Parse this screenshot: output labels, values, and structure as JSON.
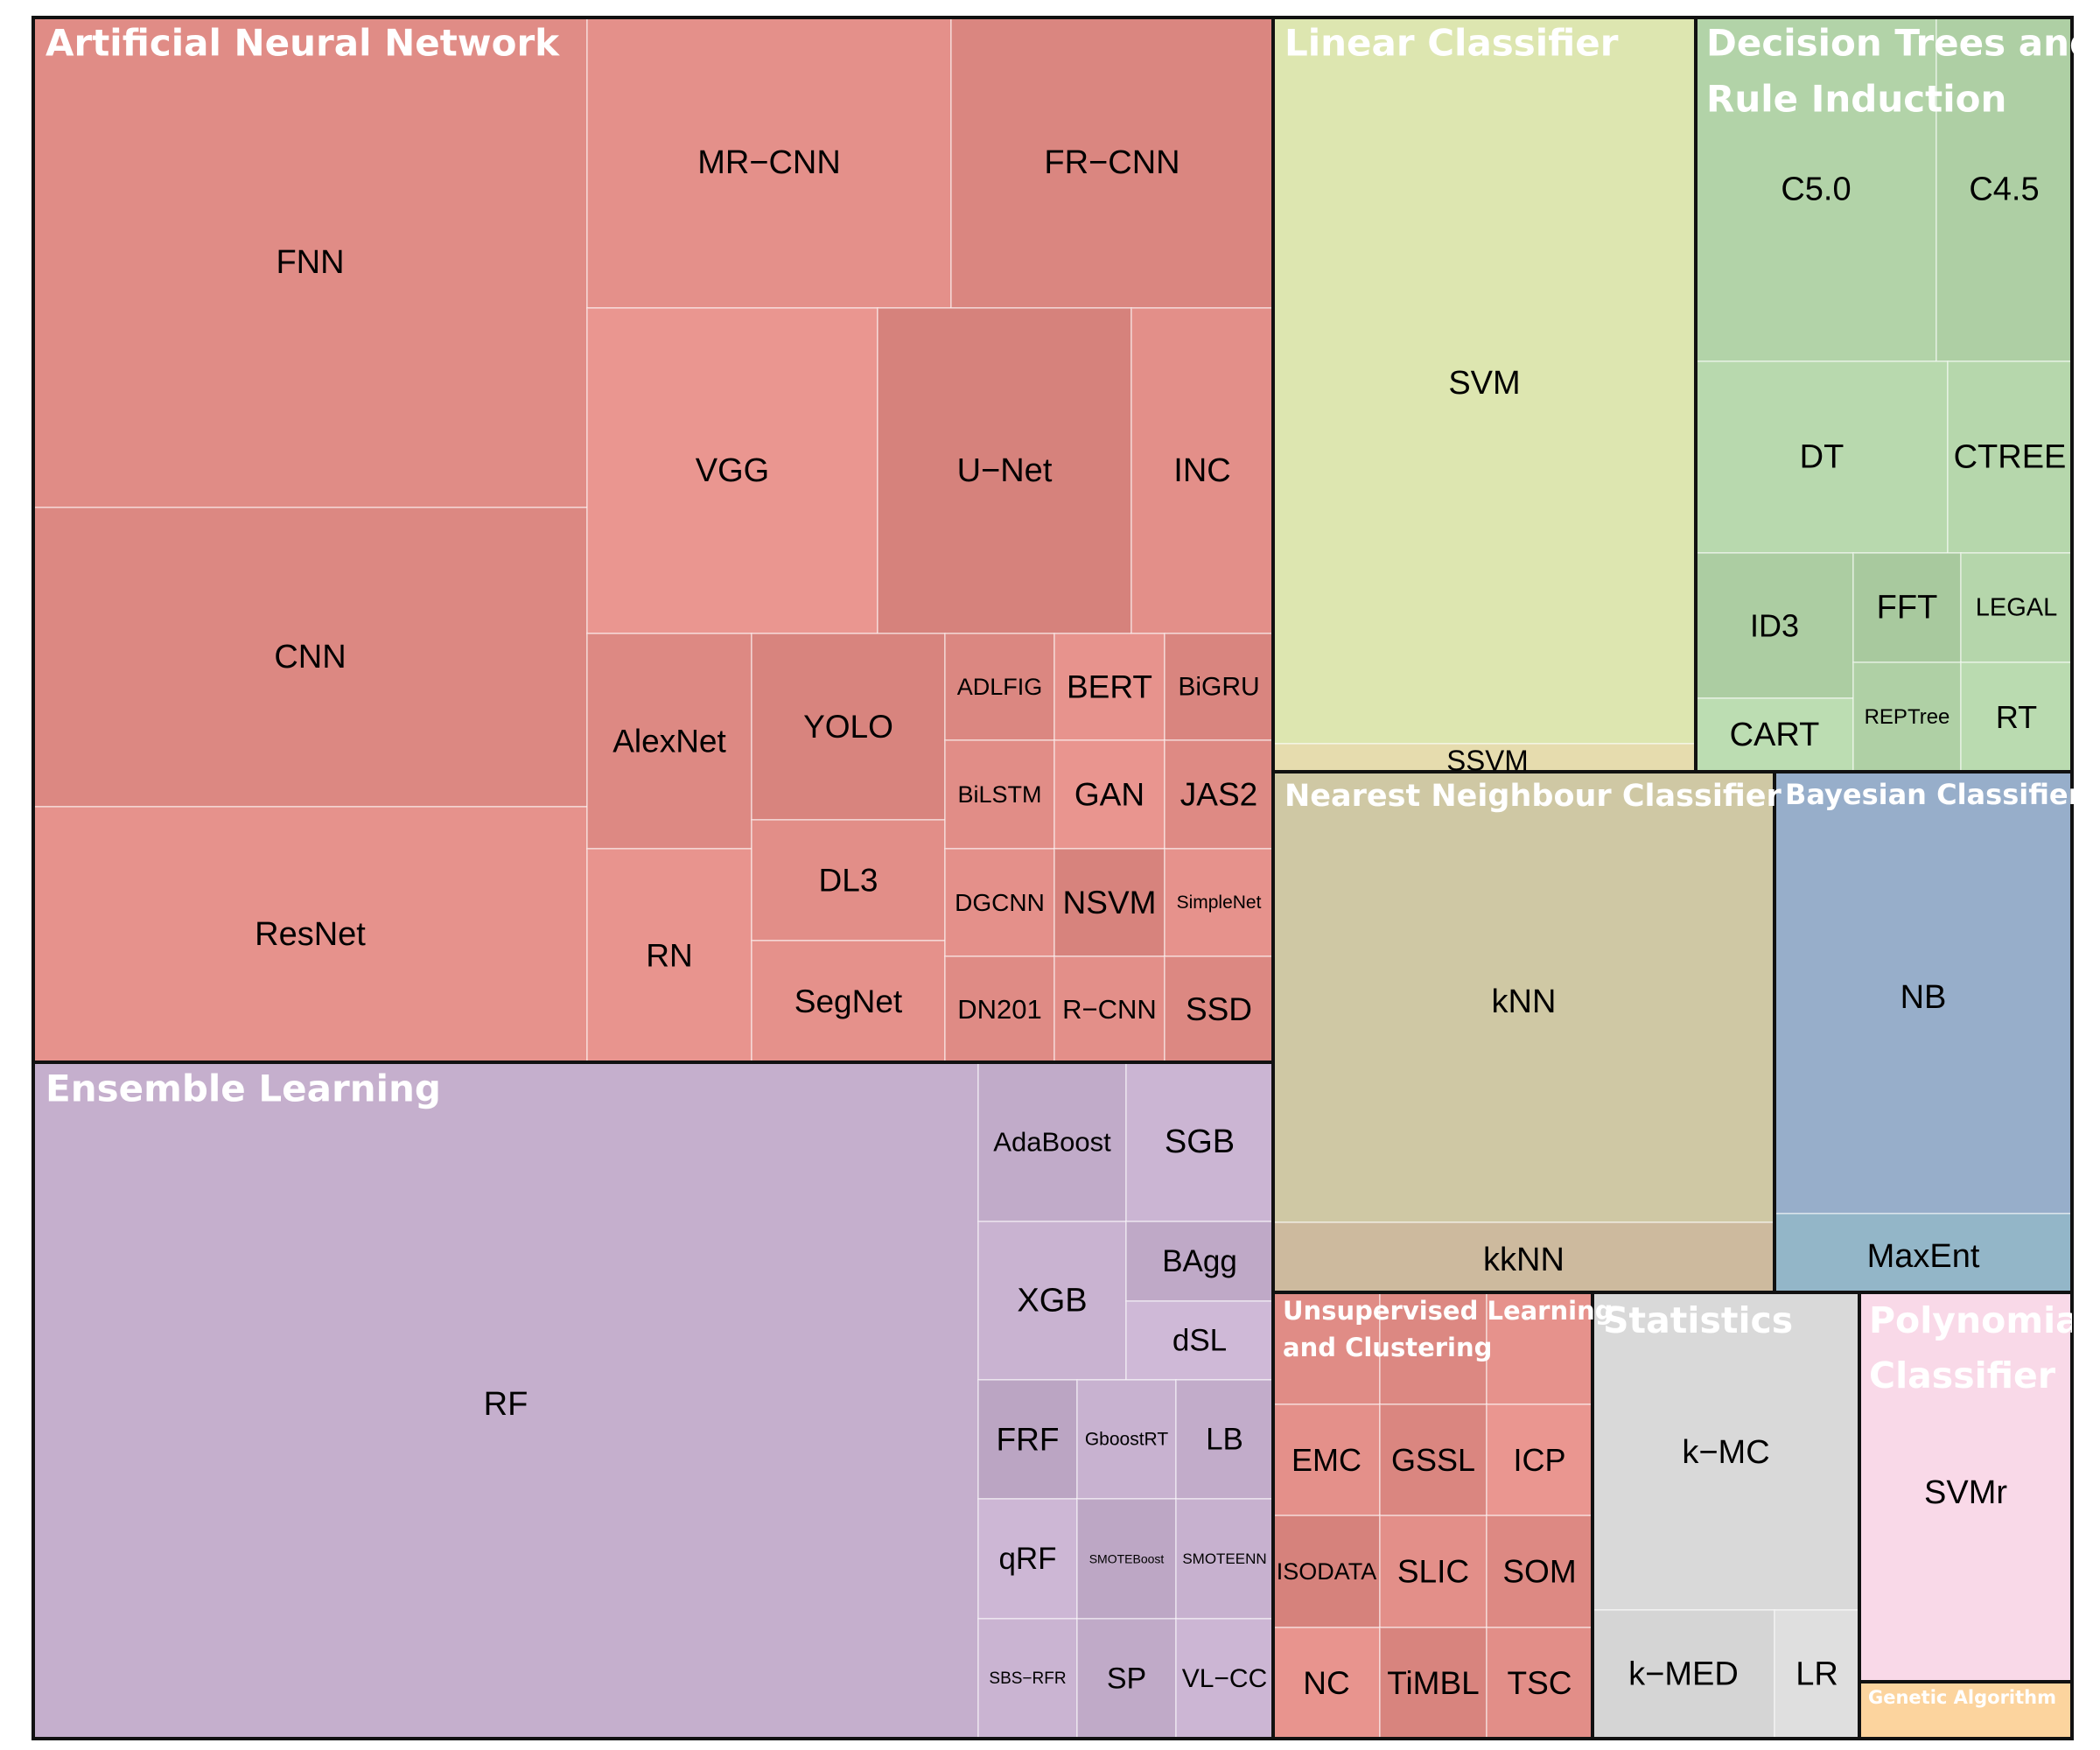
{
  "chart_data": {
    "type": "treemap",
    "groups": [
      {
        "name": "Artificial Neural Network",
        "items": [
          "FNN",
          "CNN",
          "ResNet",
          "MR−CNN",
          "FR−CNN",
          "VGG",
          "U−Net",
          "INC",
          "AlexNet",
          "RN",
          "YOLO",
          "DL3",
          "SegNet",
          "ADLFIG",
          "BERT",
          "BiGRU",
          "BiLSTM",
          "GAN",
          "JAS2",
          "DGCNN",
          "NSVM",
          "SimpleNet",
          "DN201",
          "R−CNN",
          "SSD"
        ]
      },
      {
        "name": "Ensemble Learning",
        "items": [
          "RF",
          "AdaBoost",
          "SGB",
          "XGB",
          "BAgg",
          "dSL",
          "FRF",
          "GboostRT",
          "LB",
          "qRF",
          "SMOTEBoost",
          "SMOTEENN",
          "SBS−RFR",
          "SP",
          "VL−CC"
        ]
      },
      {
        "name": "Linear Classifier",
        "items": [
          "SVM",
          "SSVM"
        ]
      },
      {
        "name": "Decision Trees and Rule Induction",
        "items": [
          "C5.0",
          "C4.5",
          "DT",
          "CTREE",
          "ID3",
          "CART",
          "FFT",
          "LEGAL",
          "REPTree",
          "RT"
        ]
      },
      {
        "name": "Nearest Neighbour Classifier",
        "items": [
          "kNN",
          "kkNN"
        ]
      },
      {
        "name": "Bayesian Classifier",
        "items": [
          "NB",
          "MaxEnt"
        ]
      },
      {
        "name": "Unsupervised Learning and Clustering",
        "items": [
          "EMC",
          "GSSL",
          "ICP",
          "ISODATA",
          "SLIC",
          "SOM",
          "NC",
          "TiMBL",
          "TSC"
        ]
      },
      {
        "name": "Statistics",
        "items": [
          "k−MC",
          "k−MED",
          "LR"
        ]
      },
      {
        "name": "Polynomial Classifier",
        "items": [
          "SVMr"
        ]
      },
      {
        "name": "Genetic Algorithm",
        "items": []
      }
    ],
    "colors": {
      "Artificial Neural Network": "#e08c86",
      "Ensemble Learning": "#c5afcd",
      "Linear Classifier": "#dde6b0",
      "Decision Trees and Rule Induction": "#b2d3a8",
      "Nearest Neighbour Classifier": "#cfc8a4",
      "Bayesian Classifier": "#97aeca",
      "Unsupervised Learning and Clustering": "#e08c86",
      "Statistics": "#d9d9d9",
      "Polynomial Classifier": "#f9d9e8",
      "Genetic Algorithm": "#fcd49e"
    }
  }
}
